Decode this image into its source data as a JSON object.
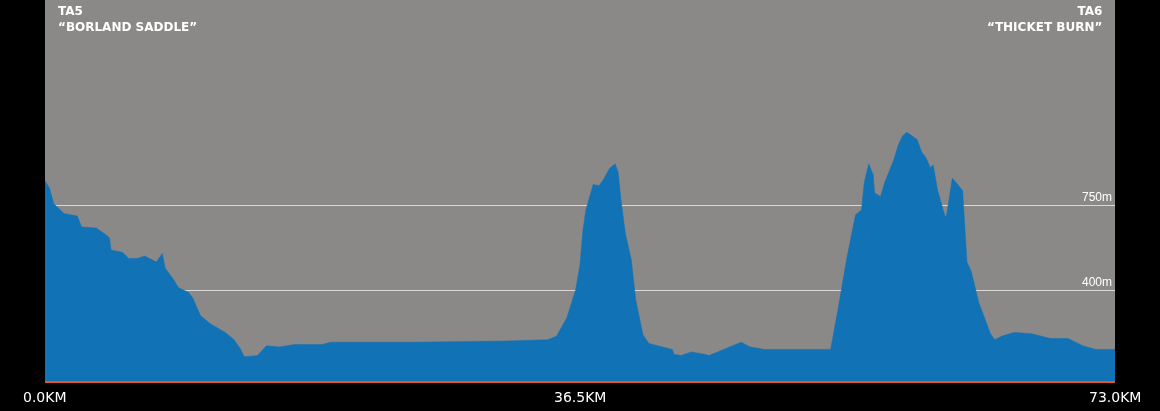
{
  "chart_data": {
    "type": "area",
    "annotations": [
      "TA5\n“BORLAND SADDLE”",
      "TA6\n“THICKET BURN”"
    ],
    "x": [
      0,
      0.3,
      0.6,
      1.3,
      2.2,
      2.5,
      3.5,
      4.1,
      4.4,
      4.5,
      5.3,
      5.7,
      6.3,
      6.8,
      7.6,
      8.0,
      8.2,
      8.8,
      9.1,
      9.8,
      10.1,
      10.6,
      11.3,
      12.3,
      12.9,
      13.3,
      13.6,
      14.5,
      15.1,
      16.0,
      17.0,
      17.6,
      18.9,
      19.5,
      25.2,
      31.5,
      34.3,
      34.9,
      35.6,
      36.2,
      36.5,
      36.7,
      36.9,
      37.4,
      37.8,
      38.1,
      38.5,
      38.9,
      39.1,
      39.3,
      39.6,
      40.0,
      40.3,
      40.8,
      41.2,
      41.8,
      42.8,
      42.9,
      43.4,
      44.1,
      45.0,
      45.3,
      46.3,
      47.5,
      48.1,
      49.1,
      50.3,
      53.6,
      54.1,
      54.7,
      55.3,
      55.7,
      55.9,
      56.2,
      56.5,
      56.6,
      57.0,
      57.3,
      57.9,
      58.2,
      58.5,
      58.8,
      59.5,
      59.8,
      60.1,
      60.4,
      60.6,
      60.9,
      61.4,
      61.5,
      61.9,
      62.2,
      62.6,
      62.9,
      63.2,
      63.7,
      64.1,
      64.5,
      64.8,
      65.3,
      66.1,
      67.3,
      68.6,
      69.2,
      69.8,
      70.8,
      71.7,
      72.0,
      73.0
    ],
    "series": [
      {
        "color": "#1172b6",
        "values": [
          850,
          820,
          755,
          715,
          705,
          660,
          655,
          630,
          615,
          565,
          555,
          530,
          530,
          540,
          515,
          550,
          490,
          440,
          410,
          390,
          365,
          295,
          260,
          225,
          195,
          160,
          125,
          130,
          170,
          165,
          175,
          175,
          175,
          185,
          185,
          190,
          195,
          210,
          285,
          400,
          505,
          645,
          730,
          835,
          830,
          855,
          900,
          920,
          885,
          770,
          630,
          525,
          360,
          215,
          180,
          170,
          155,
          135,
          130,
          145,
          135,
          130,
          155,
          185,
          165,
          155,
          155,
          155,
          320,
          530,
          710,
          730,
          845,
          920,
          875,
          800,
          785,
          845,
          935,
          995,
          1035,
          1050,
          1020,
          970,
          945,
          905,
          915,
          810,
          705,
          705,
          860,
          840,
          810,
          515,
          475,
          350,
          285,
          220,
          195,
          210,
          225,
          220,
          200,
          200,
          200,
          170,
          155,
          155,
          155
        ]
      }
    ],
    "xlim": [
      0,
      73
    ],
    "xticks": [
      {
        "value": 0,
        "label": "0.0KM"
      },
      {
        "value": 36.5,
        "label": "36.5KM"
      },
      {
        "value": 73,
        "label": "73.0KM"
      }
    ],
    "ylim": [
      25,
      1595
    ],
    "yticks": [
      {
        "value": 400,
        "label": "400m"
      },
      {
        "value": 750,
        "label": "750m"
      }
    ],
    "grid": "y"
  }
}
